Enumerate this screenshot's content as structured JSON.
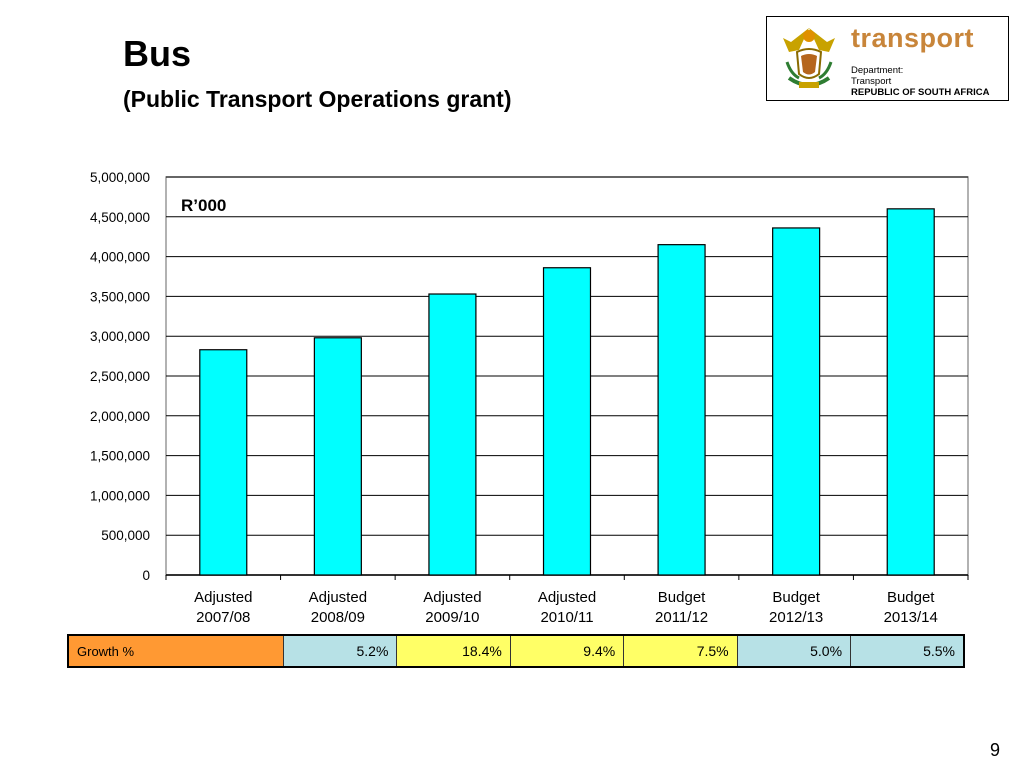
{
  "slide": {
    "title": "Bus",
    "subtitle": "(Public Transport Operations grant)",
    "page_number": "9"
  },
  "logo": {
    "wordmark": "transport",
    "line1": "Department:",
    "line2": "Transport",
    "line3": "REPUBLIC OF SOUTH AFRICA",
    "icon": "south-africa-coat-of-arms"
  },
  "chart_data": {
    "type": "bar",
    "unit_label": "R’000",
    "categories": [
      [
        "Adjusted",
        "2007/08"
      ],
      [
        "Adjusted",
        "2008/09"
      ],
      [
        "Adjusted",
        "2009/10"
      ],
      [
        "Adjusted",
        "2010/11"
      ],
      [
        "Budget",
        "2011/12"
      ],
      [
        "Budget",
        "2012/13"
      ],
      [
        "Budget",
        "2013/14"
      ]
    ],
    "values": [
      2830000,
      2980000,
      3530000,
      3860000,
      4150000,
      4360000,
      4600000
    ],
    "ylim": [
      0,
      5000000
    ],
    "yticks": [
      0,
      500000,
      1000000,
      1500000,
      2000000,
      2500000,
      3000000,
      3500000,
      4000000,
      4500000,
      5000000
    ],
    "ytick_labels": [
      "0",
      "500,000",
      "1,000,000",
      "1,500,000",
      "2,000,000",
      "2,500,000",
      "3,000,000",
      "3,500,000",
      "4,000,000",
      "4,500,000",
      "5,000,000"
    ],
    "grid": true,
    "bar_color": "#00ffff",
    "bar_edge": "#000000"
  },
  "growth_table": {
    "label": "Growth %",
    "values": [
      "5.2%",
      "18.4%",
      "9.4%",
      "7.5%",
      "5.0%",
      "5.5%"
    ],
    "cell_colors": [
      "#b7e1e6",
      "#ffff66",
      "#ffff66",
      "#ffff66",
      "#b7e1e6",
      "#b7e1e6"
    ],
    "label_color": "#ff9933"
  }
}
